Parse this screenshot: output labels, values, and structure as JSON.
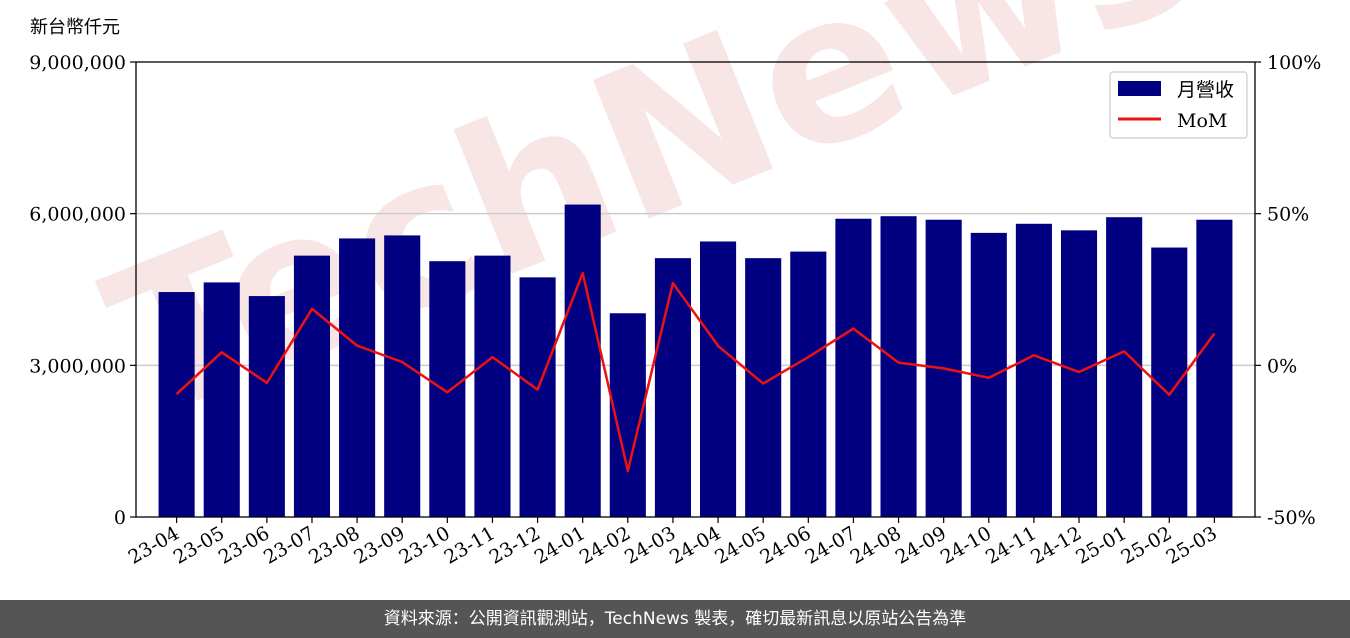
{
  "unit_label": "新台幣仟元",
  "watermark": "TechNews",
  "footer": "資料來源：公開資訊觀測站，TechNews 製表，確切最新訊息以原站公告為準",
  "colors": {
    "bar": "#000080",
    "line": "#ee1111",
    "grid": "#cccccc"
  },
  "chart_data": {
    "type": "bar",
    "categories": [
      "23-04",
      "23-05",
      "23-06",
      "23-07",
      "23-08",
      "23-09",
      "23-10",
      "23-11",
      "23-12",
      "24-01",
      "24-02",
      "24-03",
      "24-04",
      "24-05",
      "24-06",
      "24-07",
      "24-08",
      "24-09",
      "24-10",
      "24-11",
      "24-12",
      "25-01",
      "25-02",
      "25-03"
    ],
    "series": [
      {
        "name": "月營收",
        "axis": "left",
        "type": "bar",
        "values": [
          4450000,
          4640000,
          4370000,
          5170000,
          5510000,
          5570000,
          5060000,
          5170000,
          4740000,
          6180000,
          4030000,
          5120000,
          5450000,
          5120000,
          5250000,
          5900000,
          5950000,
          5880000,
          5620000,
          5800000,
          5670000,
          5930000,
          5330000,
          5880000
        ]
      },
      {
        "name": "MoM",
        "axis": "right",
        "type": "line",
        "values": [
          -9.5,
          4.3,
          -5.8,
          18.6,
          6.5,
          1.1,
          -8.9,
          2.7,
          -8.0,
          30.4,
          -34.8,
          27.1,
          6.4,
          -6.0,
          2.7,
          12.1,
          0.9,
          -1.0,
          -4.1,
          3.3,
          -2.2,
          4.6,
          -9.7,
          10.5
        ]
      }
    ],
    "y_left": {
      "range": [
        0,
        9000000
      ],
      "ticks": [
        0,
        3000000,
        6000000,
        9000000
      ],
      "tick_labels": [
        "0",
        "3,000,000",
        "6,000,000",
        "9,000,000"
      ]
    },
    "y_right": {
      "range": [
        -50,
        100
      ],
      "ticks": [
        -50,
        0,
        50,
        100
      ],
      "tick_labels": [
        "-50%",
        "0%",
        "50%",
        "100%"
      ]
    },
    "grid": "horizontal",
    "legend": "top-right"
  }
}
